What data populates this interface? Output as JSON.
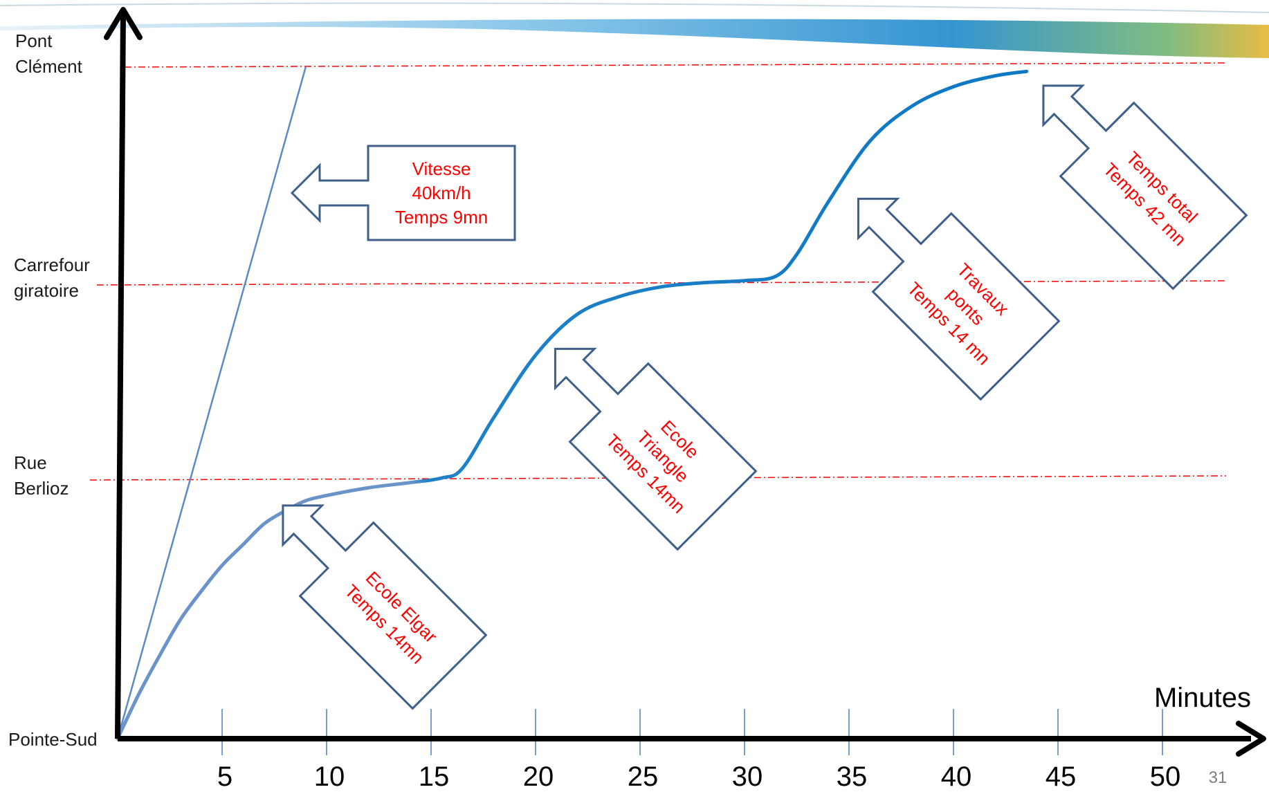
{
  "slide": {
    "page_number": "31"
  },
  "chart_data": {
    "type": "line",
    "title": "",
    "xlabel": "Minutes",
    "ylabel": "",
    "xlim": [
      0,
      55
    ],
    "x_ticks": [
      5,
      10,
      15,
      20,
      25,
      30,
      35,
      40,
      45,
      50
    ],
    "y_levels": [
      {
        "lines": [
          "Pointe-Sud"
        ],
        "dashed_guide": false
      },
      {
        "lines": [
          "Rue",
          "Berlioz"
        ],
        "dashed_guide": true
      },
      {
        "lines": [
          "Carrefour",
          "giratoire"
        ],
        "dashed_guide": true
      },
      {
        "lines": [
          "Pont",
          "Clément"
        ],
        "dashed_guide": true
      }
    ],
    "series": [
      {
        "label_ref": "Vitesse 40km/h",
        "color": "#5b8ac7",
        "points": [
          [
            0,
            0
          ],
          [
            9,
            3
          ]
        ]
      },
      {
        "label_ref": "Temps total 42 mn",
        "color_start": "#5b8ac7",
        "color_end": "#0f7ac6",
        "points": [
          [
            0,
            0
          ],
          [
            1,
            0.17
          ],
          [
            2,
            0.32
          ],
          [
            3,
            0.46
          ],
          [
            4,
            0.57
          ],
          [
            5,
            0.67
          ],
          [
            6,
            0.75
          ],
          [
            7,
            0.83
          ],
          [
            8,
            0.88
          ],
          [
            9,
            0.92
          ],
          [
            10,
            0.94
          ],
          [
            12,
            0.97
          ],
          [
            14,
            0.99
          ],
          [
            15.5,
            1.01
          ],
          [
            16.5,
            1.06
          ],
          [
            18,
            1.32
          ],
          [
            20,
            1.64
          ],
          [
            22,
            1.85
          ],
          [
            24,
            1.94
          ],
          [
            26,
            1.99
          ],
          [
            28,
            2.01
          ],
          [
            30,
            2.02
          ],
          [
            31.5,
            2.04
          ],
          [
            32.5,
            2.14
          ],
          [
            34,
            2.38
          ],
          [
            36,
            2.66
          ],
          [
            38,
            2.82
          ],
          [
            40,
            2.91
          ],
          [
            42,
            2.96
          ],
          [
            43.5,
            2.98
          ]
        ]
      }
    ],
    "annotations": [
      {
        "lines": [
          "Vitesse",
          "40km/h",
          "Temps 9mn"
        ]
      },
      {
        "lines": [
          "Ecole Elgar",
          "Temps 14mn"
        ]
      },
      {
        "lines": [
          "Ecole",
          "Triangle",
          "Temps 14mn"
        ]
      },
      {
        "lines": [
          "Travaux",
          "ponts",
          "Temps 14 mn"
        ]
      },
      {
        "lines": [
          "Temps total",
          "Temps 42 mn"
        ]
      }
    ],
    "colors": {
      "axis": "#000000",
      "guide": "#ff0000",
      "tick": "#4a7ebb",
      "callout_border": "#3d5f8a",
      "annotation_text": "#ff0000"
    }
  }
}
